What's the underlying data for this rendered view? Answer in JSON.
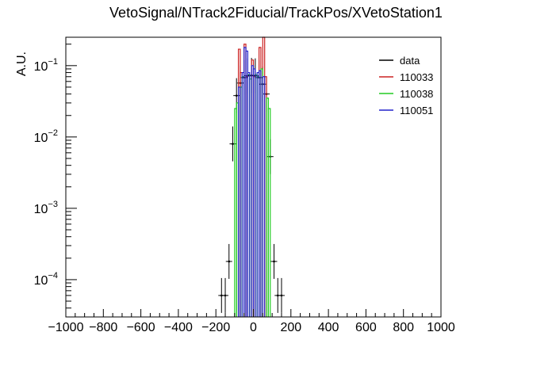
{
  "chart_data": {
    "type": "line",
    "title": "VetoSignal/NTrack2Fiducial/TrackPos/XVetoStation1",
    "ylabel": "A.U.",
    "xlabel": "",
    "xlim": [
      -1000,
      1000
    ],
    "ylim": [
      3e-05,
      0.25
    ],
    "y_scale": "log",
    "grid": false,
    "legend_position": "top-right",
    "x_tick_labels": [
      "−1000",
      "−800",
      "−600",
      "−400",
      "−200",
      "0",
      "200",
      "400",
      "600",
      "800",
      "1000"
    ],
    "x_ticks": [
      -1000,
      -800,
      -600,
      -400,
      -200,
      0,
      200,
      400,
      600,
      800,
      1000
    ],
    "y_ticks": [
      {
        "value": 0.0001,
        "label": "10",
        "exp": "−4"
      },
      {
        "value": 0.001,
        "label": "10",
        "exp": "−3"
      },
      {
        "value": 0.01,
        "label": "10",
        "exp": "−2"
      },
      {
        "value": 0.1,
        "label": "10",
        "exp": "−1"
      }
    ],
    "series": [
      {
        "name": "data",
        "style": "points",
        "color": "#000000",
        "points": [
          {
            "x": -170,
            "y": 6e-05
          },
          {
            "x": -150,
            "y": 6e-05
          },
          {
            "x": -130,
            "y": 0.00018
          },
          {
            "x": -110,
            "y": 0.008
          },
          {
            "x": -90,
            "y": 0.038
          },
          {
            "x": -70,
            "y": 0.057
          },
          {
            "x": -50,
            "y": 0.068
          },
          {
            "x": -30,
            "y": 0.072
          },
          {
            "x": -10,
            "y": 0.073
          },
          {
            "x": 10,
            "y": 0.072
          },
          {
            "x": 30,
            "y": 0.068
          },
          {
            "x": 50,
            "y": 0.055
          },
          {
            "x": 70,
            "y": 0.04
          },
          {
            "x": 90,
            "y": 0.0053
          },
          {
            "x": 110,
            "y": 0.00018
          },
          {
            "x": 130,
            "y": 6e-05
          },
          {
            "x": 150,
            "y": 6e-05
          }
        ]
      },
      {
        "name": "110033",
        "style": "histogram",
        "color": "#cc2222",
        "bins": [
          {
            "x0": -80,
            "x1": -70,
            "y": 0.17
          },
          {
            "x0": -70,
            "x1": -60,
            "y": 0.08
          },
          {
            "x0": -50,
            "x1": -40,
            "y": 0.2
          },
          {
            "x0": -40,
            "x1": -30,
            "y": 0.07
          },
          {
            "x0": -10,
            "x1": 0,
            "y": 0.12
          },
          {
            "x0": 0,
            "x1": 10,
            "y": 0.07
          },
          {
            "x0": 30,
            "x1": 40,
            "y": 0.18
          },
          {
            "x0": 50,
            "x1": 60,
            "y": 0.25
          },
          {
            "x0": 60,
            "x1": 70,
            "y": 0.07
          }
        ]
      },
      {
        "name": "110038",
        "style": "histogram",
        "color": "#22cc22",
        "bins": [
          {
            "x0": -100,
            "x1": -90,
            "y": 0.025
          },
          {
            "x0": -90,
            "x1": -80,
            "y": 0.03
          },
          {
            "x0": -70,
            "x1": -60,
            "y": 0.05
          },
          {
            "x0": -60,
            "x1": -50,
            "y": 0.07
          },
          {
            "x0": -30,
            "x1": -20,
            "y": 0.075
          },
          {
            "x0": -20,
            "x1": -10,
            "y": 0.065
          },
          {
            "x0": 10,
            "x1": 20,
            "y": 0.075
          },
          {
            "x0": 20,
            "x1": 30,
            "y": 0.07
          },
          {
            "x0": 40,
            "x1": 50,
            "y": 0.09
          },
          {
            "x0": 70,
            "x1": 80,
            "y": 0.035
          },
          {
            "x0": 80,
            "x1": 90,
            "y": 0.025
          }
        ]
      },
      {
        "name": "110051",
        "style": "histogram",
        "color": "#2222cc",
        "bins": [
          {
            "x0": -80,
            "x1": -70,
            "y": 0.05
          },
          {
            "x0": -60,
            "x1": -50,
            "y": 0.08
          },
          {
            "x0": -50,
            "x1": -40,
            "y": 0.18
          },
          {
            "x0": -40,
            "x1": -30,
            "y": 0.16
          },
          {
            "x0": -30,
            "x1": -20,
            "y": 0.08
          },
          {
            "x0": -10,
            "x1": 0,
            "y": 0.1
          },
          {
            "x0": 0,
            "x1": 10,
            "y": 0.09
          },
          {
            "x0": 20,
            "x1": 30,
            "y": 0.08
          },
          {
            "x0": 30,
            "x1": 40,
            "y": 0.085
          },
          {
            "x0": 50,
            "x1": 60,
            "y": 0.07
          }
        ]
      }
    ]
  }
}
